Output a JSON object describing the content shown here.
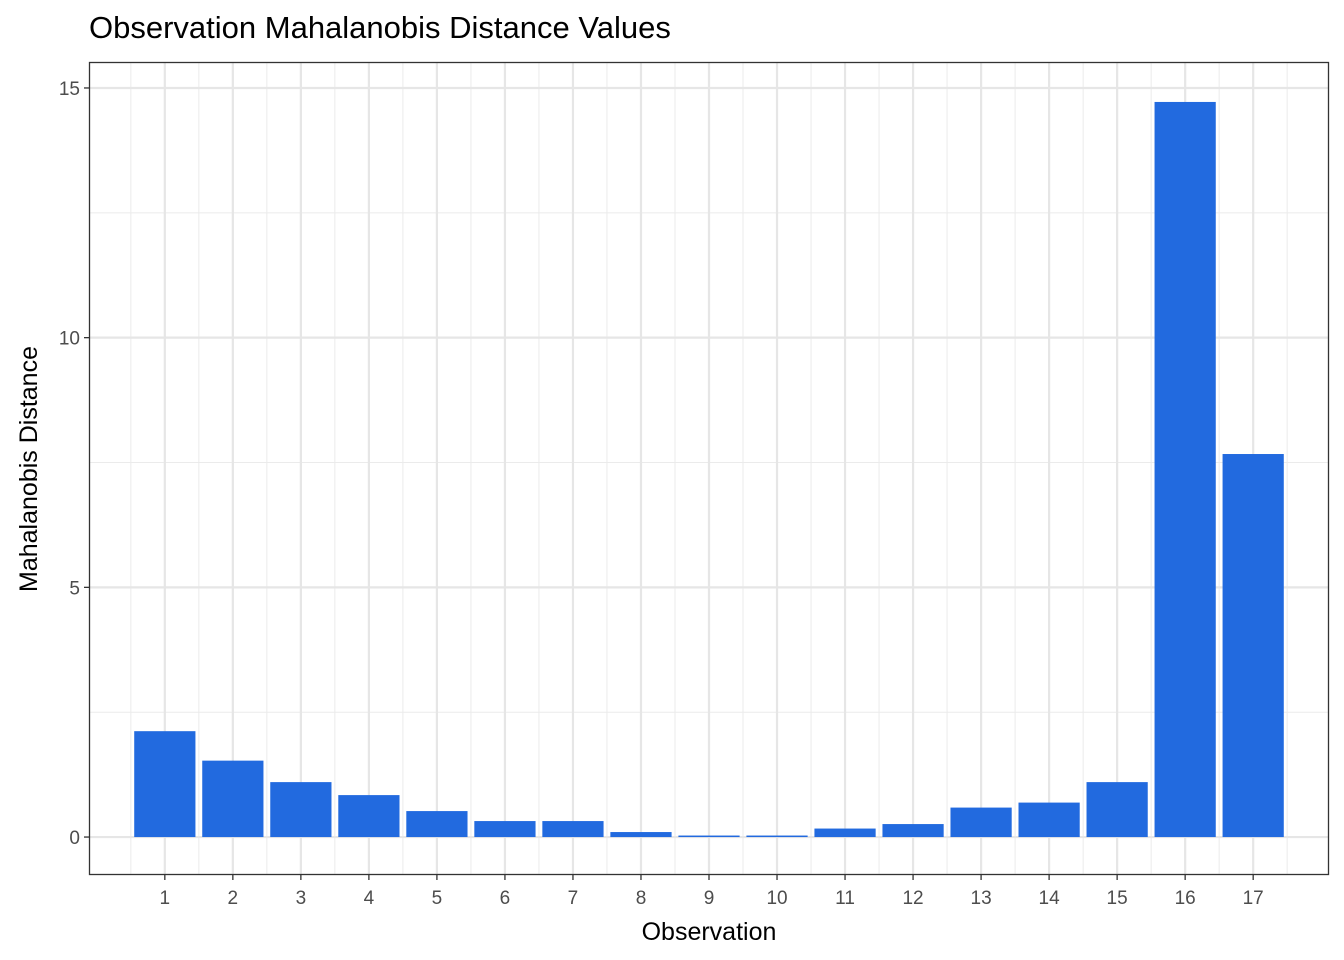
{
  "chart_data": {
    "type": "bar",
    "title": "Observation Mahalanobis Distance Values",
    "xlabel": "Observation",
    "ylabel": "Mahalanobis Distance",
    "categories": [
      "1",
      "2",
      "3",
      "4",
      "5",
      "6",
      "7",
      "8",
      "9",
      "10",
      "11",
      "12",
      "13",
      "14",
      "15",
      "16",
      "17"
    ],
    "values": [
      2.12,
      1.53,
      1.1,
      0.84,
      0.52,
      0.32,
      0.32,
      0.1,
      0.03,
      0.03,
      0.17,
      0.26,
      0.59,
      0.69,
      1.1,
      14.72,
      7.67
    ],
    "yticks": [
      0,
      5,
      10,
      15
    ],
    "ylim": [
      -0.74,
      15.5
    ],
    "grid": true,
    "bar_color": "#226ADF",
    "theme": "black-white panel border, light grey grid"
  }
}
